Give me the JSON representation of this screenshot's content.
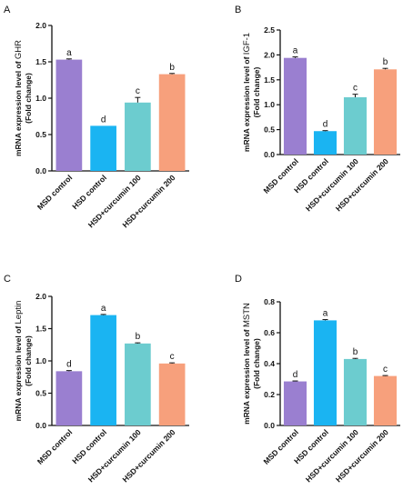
{
  "chart_data": [
    {
      "type": "bar",
      "panel": "A",
      "ylabel_prefix": "mRNA expression level of ",
      "ylabel_gene": "GHR",
      "ylabel_line2": "(Fold change)",
      "categories": [
        "MSD control",
        "HSD control",
        "HSD+curcumin 100",
        "HSD+curcumin 200"
      ],
      "values": [
        1.53,
        0.62,
        0.94,
        1.33
      ],
      "errors": [
        0.01,
        0.0,
        0.07,
        0.01
      ],
      "labels": [
        "a",
        "d",
        "c",
        "b"
      ],
      "colors": [
        "#9a7fd0",
        "#1ab4f2",
        "#6ccccf",
        "#f7a07c"
      ],
      "yticks": [
        "0.0",
        "0.5",
        "1.0",
        "1.5",
        "2.0"
      ],
      "ylim": [
        0,
        2.0
      ]
    },
    {
      "type": "bar",
      "panel": "B",
      "ylabel_prefix": "mRNA expression level of ",
      "ylabel_gene": "IGF-1",
      "ylabel_line2": "(Fold change)",
      "categories": [
        "MSD control",
        "HSD control",
        "HSD+curcumin 100",
        "HSD+curcumin 200"
      ],
      "values": [
        1.94,
        0.47,
        1.15,
        1.71
      ],
      "errors": [
        0.02,
        0.01,
        0.06,
        0.02
      ],
      "labels": [
        "a",
        "d",
        "c",
        "b"
      ],
      "colors": [
        "#9a7fd0",
        "#1ab4f2",
        "#6ccccf",
        "#f7a07c"
      ],
      "yticks": [
        "0.0",
        "0.5",
        "1.0",
        "1.5",
        "2.0",
        "2.5"
      ],
      "ylim": [
        0,
        2.5
      ]
    },
    {
      "type": "bar",
      "panel": "C",
      "ylabel_prefix": "mRNA expression level of ",
      "ylabel_gene": "Leptin",
      "ylabel_line2": "(Fold change)",
      "categories": [
        "MSD control",
        "HSD control",
        "HSD+curcumin 100",
        "HSD+curcumin 200"
      ],
      "values": [
        0.84,
        1.71,
        1.27,
        0.96
      ],
      "errors": [
        0.01,
        0.01,
        0.01,
        0.01
      ],
      "labels": [
        "d",
        "a",
        "b",
        "c"
      ],
      "colors": [
        "#9a7fd0",
        "#1ab4f2",
        "#6ccccf",
        "#f7a07c"
      ],
      "yticks": [
        "0.0",
        "0.5",
        "1.0",
        "1.5",
        "2.0"
      ],
      "ylim": [
        0,
        2.0
      ]
    },
    {
      "type": "bar",
      "panel": "D",
      "ylabel_prefix": "mRNA expression level of ",
      "ylabel_gene": "MSTN",
      "ylabel_line2": "(Fold change)",
      "categories": [
        "MSD control",
        "HSD control",
        "HSD+curcumin 100",
        "HSD+curcumin 200"
      ],
      "values": [
        0.285,
        0.68,
        0.43,
        0.32
      ],
      "errors": [
        0.003,
        0.005,
        0.004,
        0.003
      ],
      "labels": [
        "d",
        "a",
        "b",
        "c"
      ],
      "colors": [
        "#9a7fd0",
        "#1ab4f2",
        "#6ccccf",
        "#f7a07c"
      ],
      "yticks": [
        "0.0",
        "0.2",
        "0.4",
        "0.6",
        "0.8"
      ],
      "ylim": [
        0,
        0.8
      ]
    }
  ]
}
